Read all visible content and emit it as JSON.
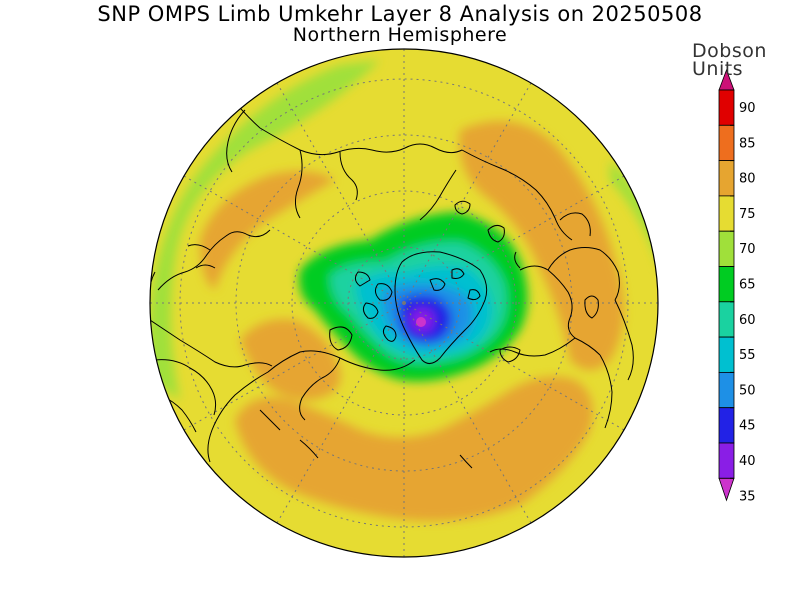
{
  "title": {
    "line1": "SNP OMPS Limb Umkehr Layer 8 Analysis on 20250508",
    "line2": "Northern Hemisphere"
  },
  "colorbar": {
    "unit_line1": "Dobson",
    "unit_line2": "Units",
    "ticks": [
      "90",
      "85",
      "80",
      "75",
      "70",
      "65",
      "60",
      "55",
      "50",
      "45",
      "40",
      "35"
    ],
    "levels": [
      {
        "range": "<35",
        "color": "#cc33cc"
      },
      {
        "range": "35-40",
        "color": "#8a1ee6"
      },
      {
        "range": "40-45",
        "color": "#2222e6"
      },
      {
        "range": "45-50",
        "color": "#1e90e6"
      },
      {
        "range": "50-55",
        "color": "#00c0d0"
      },
      {
        "range": "55-60",
        "color": "#1ad2a0"
      },
      {
        "range": "60-65",
        "color": "#00cc22"
      },
      {
        "range": "65-70",
        "color": "#a0e03a"
      },
      {
        "range": "70-75",
        "color": "#e6dc32"
      },
      {
        "range": "75-80",
        "color": "#e6a530"
      },
      {
        "range": "80-85",
        "color": "#ee6e1e"
      },
      {
        "range": "85-90",
        "color": "#e00000"
      },
      {
        "range": ">90",
        "color": "#cc1177"
      }
    ]
  },
  "map": {
    "projection": "north-polar-stereographic",
    "hemisphere": "Northern Hemisphere",
    "field": "layer 8 ozone column",
    "units": "Dobson Units",
    "minimum_region": "near North Pole (below 40 DU)"
  }
}
